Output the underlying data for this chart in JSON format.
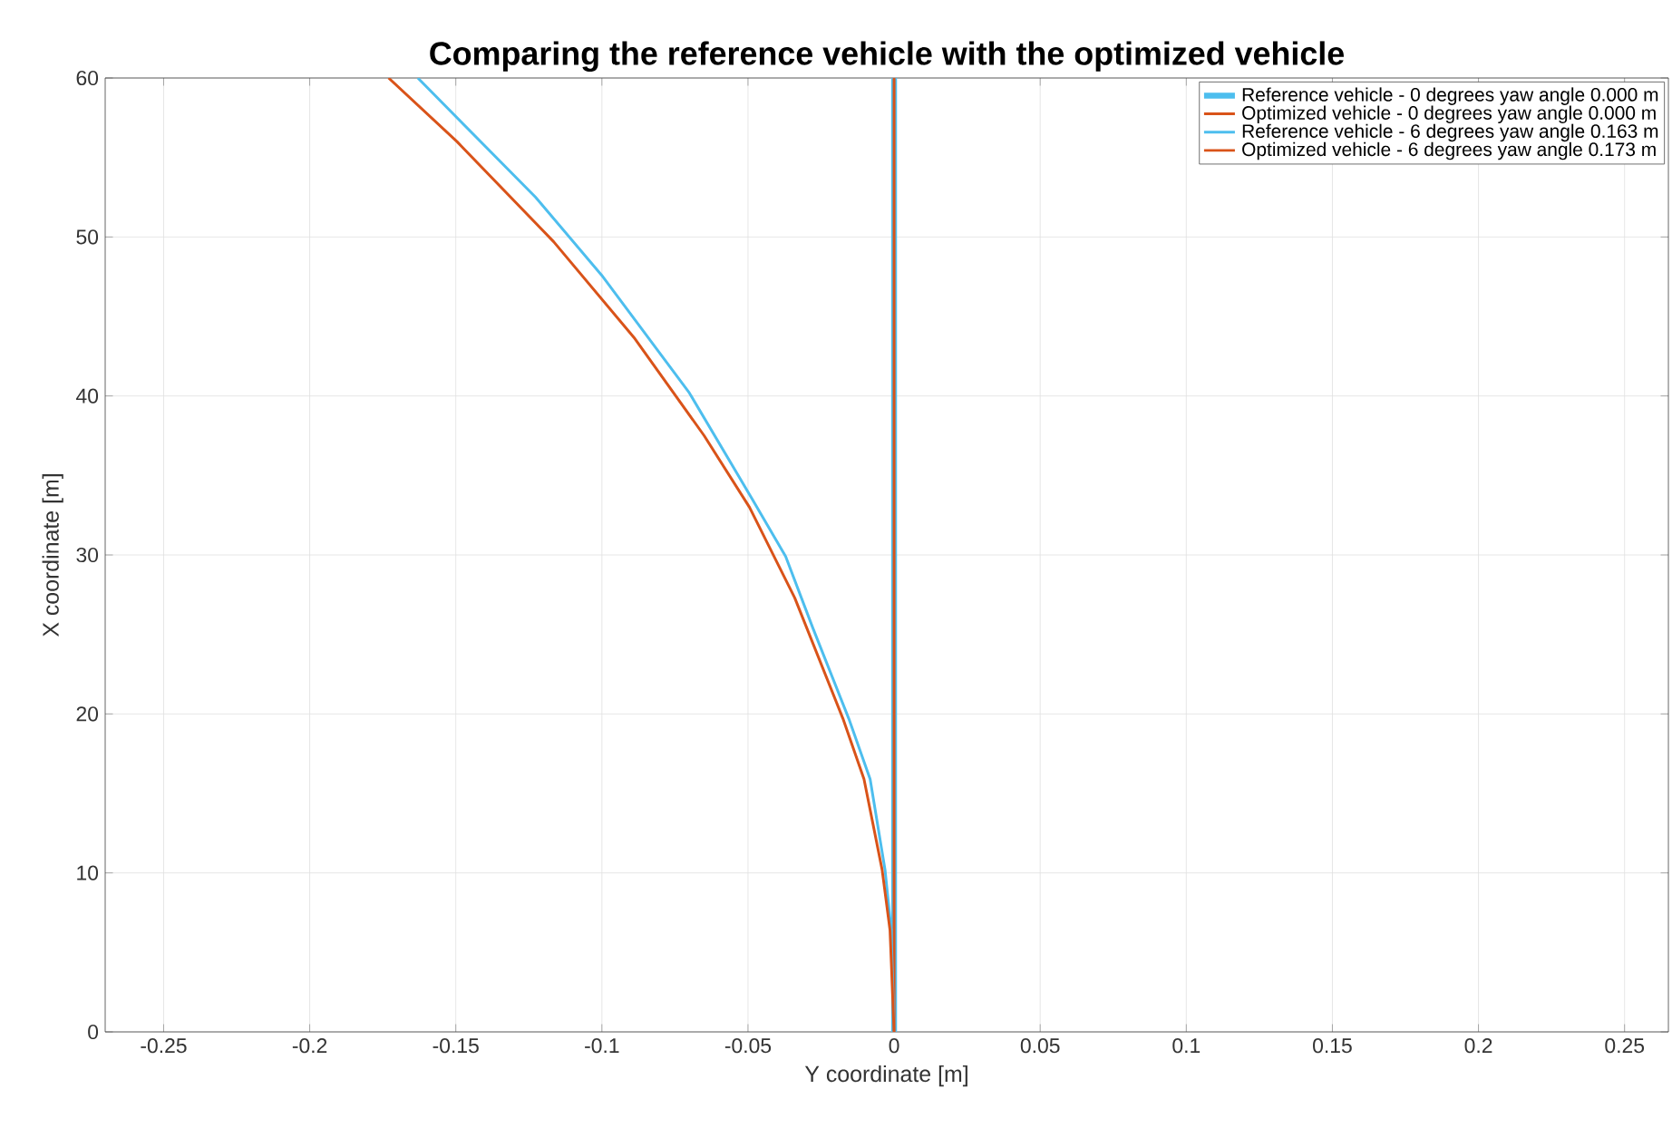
{
  "chart_data": {
    "type": "line",
    "title": "Comparing the reference vehicle with the optimized vehicle",
    "xlabel": "Y coordinate [m]",
    "ylabel": "X coordinate [m]",
    "xlim": [
      -0.27,
      0.265
    ],
    "ylim": [
      0,
      60
    ],
    "xticks": [
      -0.25,
      {
        "value": -0.2,
        "label": "-0.2"
      },
      -0.15,
      {
        "value": -0.1,
        "label": "-0.1"
      },
      -0.05,
      0,
      0.05,
      {
        "value": 0.1,
        "label": "0.1"
      },
      0.15,
      {
        "value": 0.2,
        "label": "0.2"
      },
      0.25
    ],
    "yticks": [
      0,
      10,
      20,
      30,
      40,
      50,
      60
    ],
    "grid": true,
    "legend": "top right",
    "line_style": "solid",
    "marker": "none",
    "series": [
      {
        "name": "Reference vehicle - 0 degrees yaw angle  0.000 m",
        "color": "#4dbeee",
        "x": [
          0,
          0
        ],
        "values": [
          0,
          60
        ]
      },
      {
        "name": "Optimized vehicle - 0 degrees yaw angle  0.000 m",
        "color": "#d95319",
        "x": [
          0,
          0
        ],
        "values": [
          0,
          60
        ]
      },
      {
        "name": "Reference vehicle - 6 degrees yaw angle  0.163 m",
        "color": "#4dbeee",
        "x": [
          0,
          -0.001,
          -0.0031,
          -0.0082,
          -0.0155,
          -0.0278,
          -0.0371,
          -0.0485,
          -0.0701,
          -0.1001,
          -0.1227,
          -0.163
        ],
        "values": [
          0,
          6.4,
          10.2,
          15.9,
          19.7,
          25.4,
          29.9,
          33.5,
          40.2,
          47.6,
          52.5,
          60
        ]
      },
      {
        "name": "Optimized vehicle - 6 degrees yaw angle  0.173 m",
        "color": "#d95319",
        "x": [
          0,
          -0.0014,
          -0.0041,
          -0.0103,
          -0.0175,
          -0.034,
          -0.0495,
          -0.065,
          -0.0887,
          -0.1165,
          -0.1496,
          -0.173
        ],
        "values": [
          0,
          6.4,
          10.2,
          15.9,
          19.7,
          27.3,
          33.0,
          37.5,
          43.6,
          49.7,
          56.0,
          60
        ]
      }
    ]
  }
}
